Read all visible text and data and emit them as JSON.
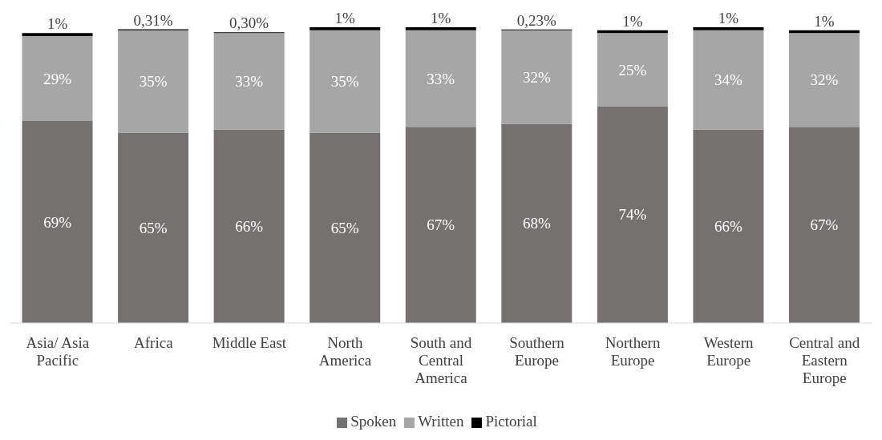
{
  "chart_data": {
    "type": "bar",
    "stacked": true,
    "data_labels": true,
    "legend": "bottom",
    "categories": [
      "Asia/ Asia Pacific",
      "Africa",
      "Middle East",
      "North America",
      "South and Central America",
      "Southern Europe",
      "Northern Europe",
      "Western Europe",
      "Central and Eastern Europe"
    ],
    "series": [
      {
        "name": "Spoken",
        "color": "#767171",
        "values": [
          69,
          65,
          66,
          65,
          67,
          68,
          74,
          66,
          67
        ],
        "value_labels": [
          "69%",
          "65%",
          "66%",
          "65%",
          "67%",
          "68%",
          "74%",
          "66%",
          "67%"
        ]
      },
      {
        "name": "Written",
        "color": "#a6a6a6",
        "values": [
          29,
          35,
          33,
          35,
          33,
          32,
          25,
          34,
          32
        ],
        "value_labels": [
          "29%",
          "35%",
          "33%",
          "35%",
          "33%",
          "32%",
          "25%",
          "34%",
          "32%"
        ]
      },
      {
        "name": "Pictorial",
        "color": "#000000",
        "values": [
          1,
          0.31,
          0.3,
          1,
          1,
          0.23,
          1,
          1,
          1
        ],
        "value_labels": [
          "1%",
          "0,31%",
          "0,30%",
          "1%",
          "1%",
          "0,23%",
          "1%",
          "1%",
          "1%"
        ]
      }
    ]
  }
}
